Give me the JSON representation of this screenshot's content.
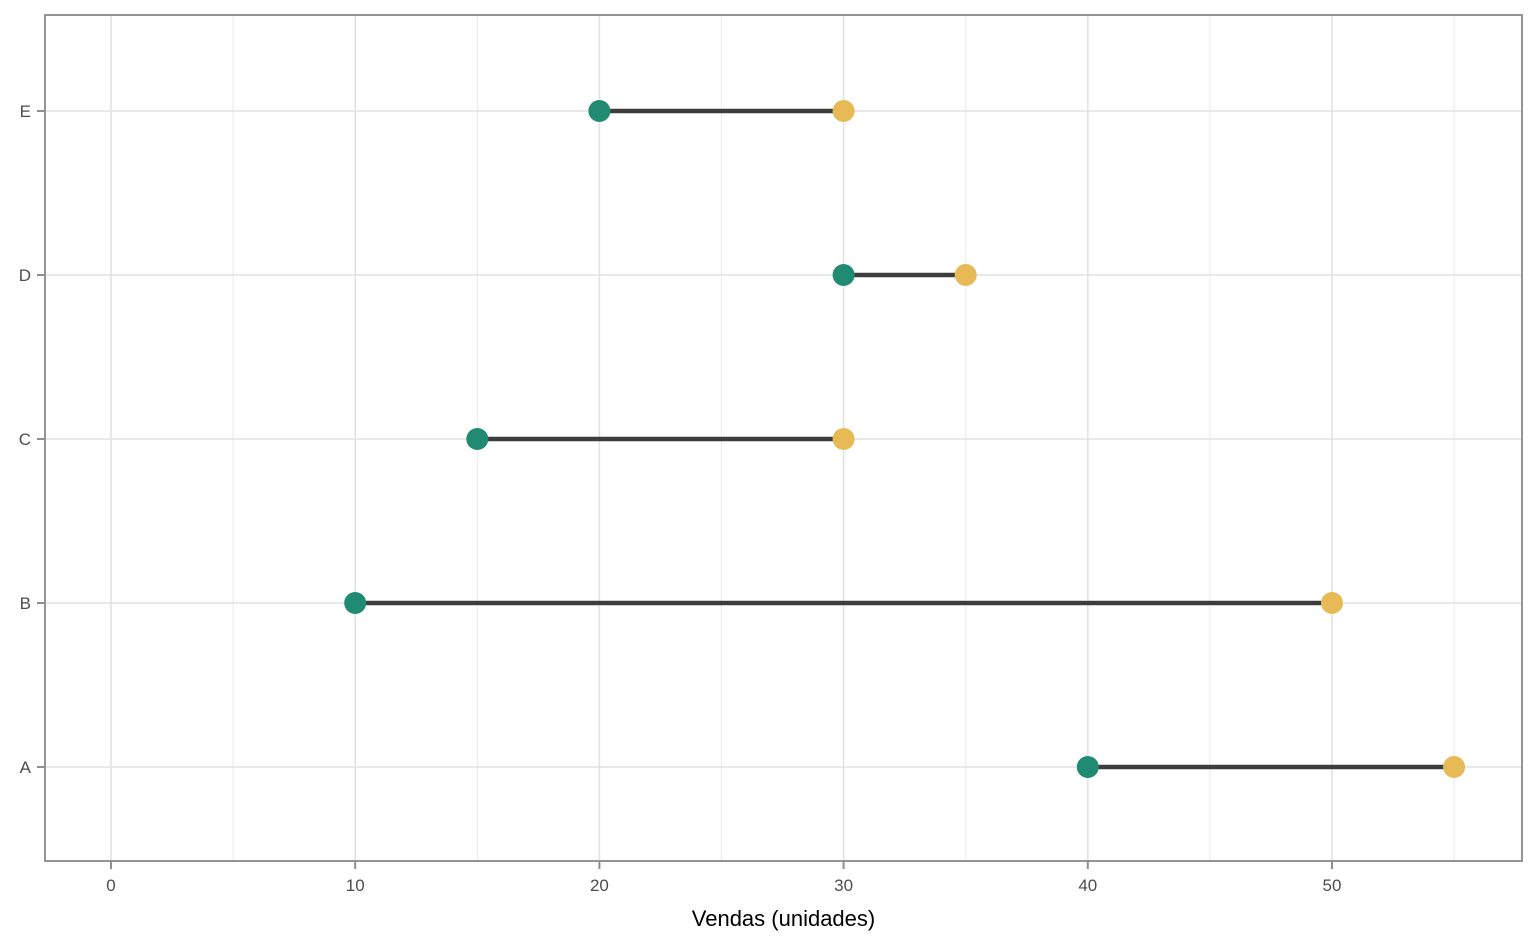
{
  "chart_data": {
    "type": "dumbbell",
    "title": "",
    "xlabel": "Vendas (unidades)",
    "ylabel": "",
    "categories_top_to_bottom": [
      "E",
      "D",
      "C",
      "B",
      "A"
    ],
    "series": [
      {
        "name": "start-dot",
        "color": "#218a73",
        "values": [
          20,
          30,
          15,
          10,
          40
        ]
      },
      {
        "name": "end-dot",
        "color": "#e8ba55",
        "values": [
          30,
          35,
          30,
          50,
          55
        ]
      }
    ],
    "pairs": [
      {
        "category": "E",
        "start": 20,
        "end": 30
      },
      {
        "category": "D",
        "start": 30,
        "end": 35
      },
      {
        "category": "C",
        "start": 15,
        "end": 30
      },
      {
        "category": "B",
        "start": 10,
        "end": 50
      },
      {
        "category": "A",
        "start": 40,
        "end": 55
      }
    ],
    "xlim": [
      -2.7,
      57.8
    ],
    "x_major_ticks": [
      0,
      10,
      20,
      30,
      40,
      50
    ],
    "x_minor_gridlines": [
      5,
      15,
      25,
      35,
      45,
      55
    ],
    "grid": true,
    "legend_position": "none",
    "style": {
      "segment_color": "#3d3d3d",
      "grid_major_color": "#e2e2e2",
      "grid_minor_color": "#ededed",
      "panel_border_color": "#949494",
      "tick_mark_color": "#8f8f8f",
      "tick_label_color": "#4d4d4d",
      "axis_title_color": "#000000",
      "panel_background": "#ffffff"
    }
  }
}
